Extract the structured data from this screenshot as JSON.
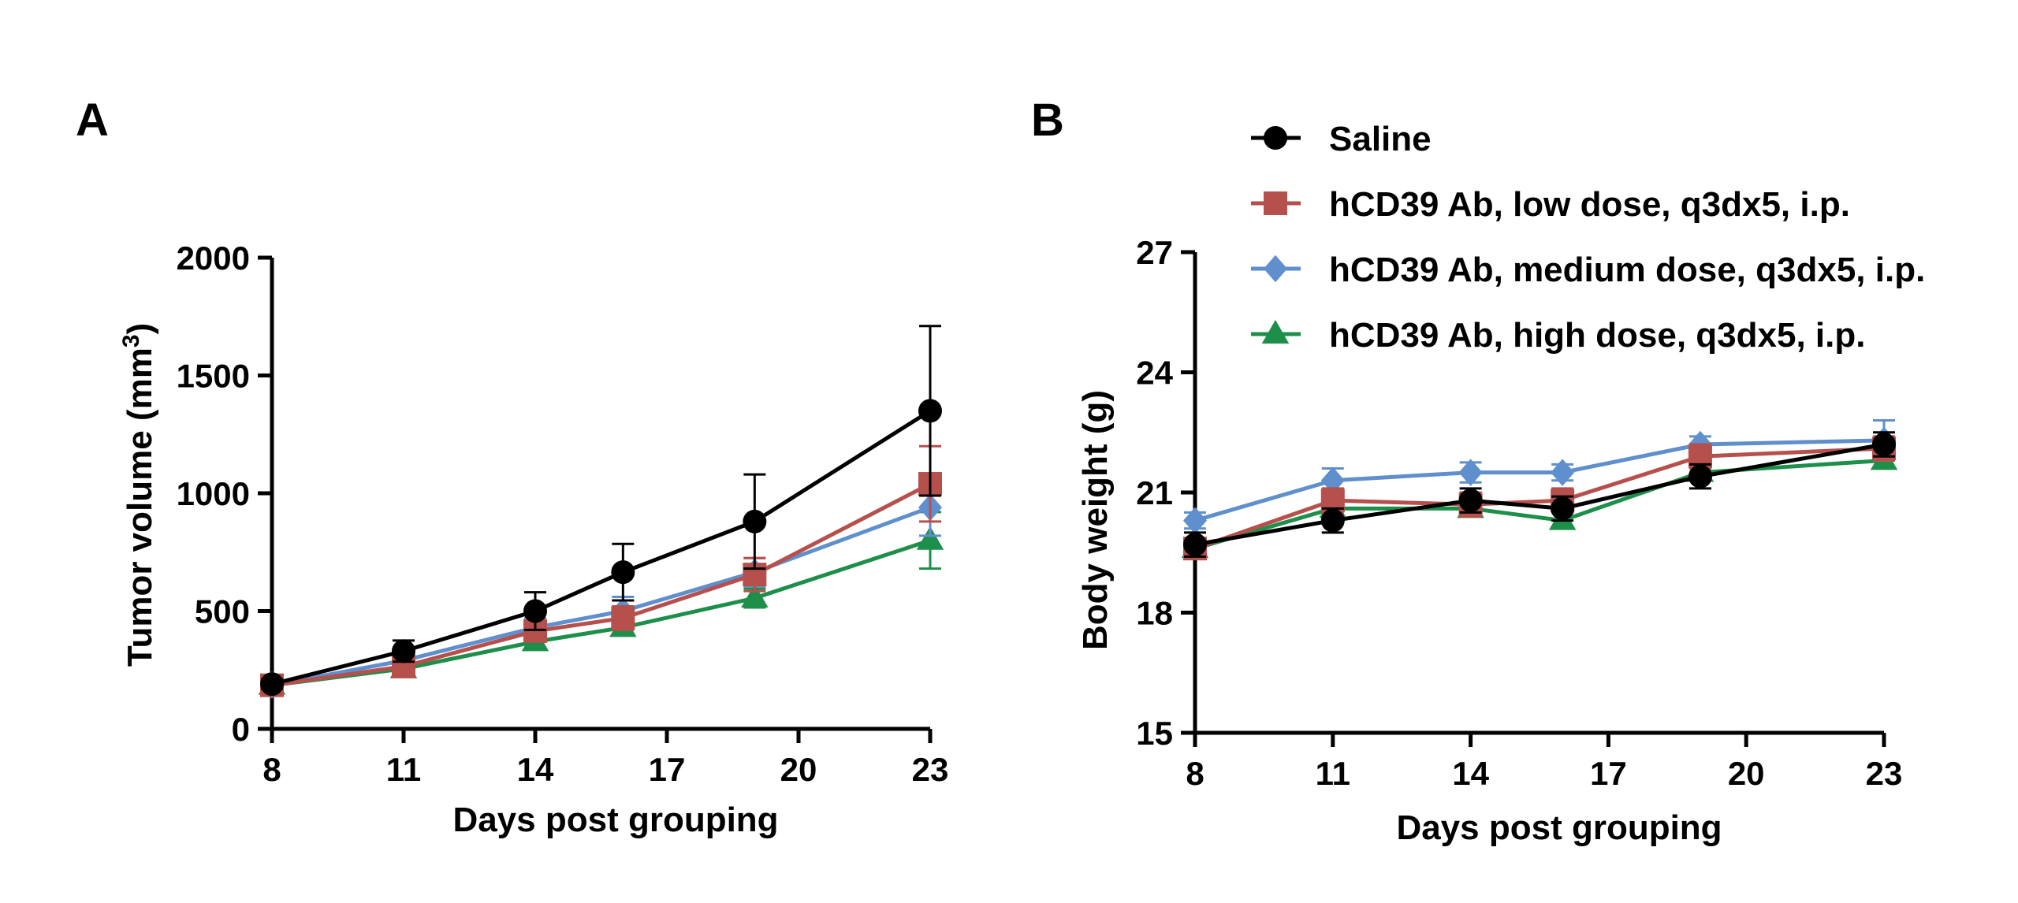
{
  "series_styles": [
    {
      "name": "Saline",
      "color": "#000000",
      "marker": "circle"
    },
    {
      "name": "hCD39 Ab, low dose, q3dx5, i.p.",
      "color": "#b5504d",
      "marker": "square"
    },
    {
      "name": "hCD39 Ab, medium dose, q3dx5, i.p.",
      "color": "#5f8fcc",
      "marker": "diamond"
    },
    {
      "name": "hCD39 Ab, high dose, q3dx5, i.p.",
      "color": "#1e8f4a",
      "marker": "triangle"
    }
  ],
  "chart_data": [
    {
      "panel": "A",
      "type": "line",
      "xlabel": "Days post grouping",
      "ylabel": "Tumor volume (mm",
      "ylabel_sup": "3",
      "ylabel_close": ")",
      "xlim": [
        8,
        23
      ],
      "ylim": [
        0,
        2000
      ],
      "xticks": [
        8,
        11,
        14,
        17,
        20,
        23
      ],
      "yticks": [
        0,
        500,
        1000,
        1500,
        2000
      ],
      "x": [
        8,
        11,
        14,
        16,
        19,
        23
      ],
      "series": [
        {
          "name": "Saline",
          "values": [
            190,
            330,
            500,
            665,
            880,
            1350
          ],
          "errors": [
            20,
            45,
            80,
            120,
            200,
            360
          ]
        },
        {
          "name": "hCD39 Ab, low dose, q3dx5, i.p.",
          "values": [
            185,
            265,
            415,
            470,
            655,
            1040
          ],
          "errors": [
            15,
            25,
            40,
            50,
            70,
            160
          ]
        },
        {
          "name": "hCD39 Ab, medium dose, q3dx5, i.p.",
          "values": [
            185,
            290,
            430,
            500,
            665,
            940
          ],
          "errors": [
            15,
            25,
            40,
            60,
            60,
            120
          ]
        },
        {
          "name": "hCD39 Ab, high dose, q3dx5, i.p.",
          "values": [
            185,
            255,
            370,
            430,
            555,
            800
          ],
          "errors": [
            15,
            20,
            25,
            30,
            40,
            120
          ]
        }
      ]
    },
    {
      "panel": "B",
      "type": "line",
      "xlabel": "Days post grouping",
      "ylabel": "Body weight (g)",
      "xlim": [
        8,
        23
      ],
      "ylim": [
        15,
        27
      ],
      "xticks": [
        8,
        11,
        14,
        17,
        20,
        23
      ],
      "yticks": [
        15,
        18,
        21,
        24,
        27
      ],
      "x": [
        8,
        11,
        14,
        16,
        19,
        23
      ],
      "legend_position": "top",
      "series": [
        {
          "name": "Saline",
          "values": [
            19.7,
            20.3,
            20.8,
            20.6,
            21.4,
            22.2
          ],
          "errors": [
            0.3,
            0.3,
            0.3,
            0.3,
            0.3,
            0.3
          ]
        },
        {
          "name": "hCD39 Ab, low dose, q3dx5, i.p.",
          "values": [
            19.6,
            20.8,
            20.7,
            20.8,
            21.9,
            22.1
          ],
          "errors": [
            0.2,
            0.3,
            0.3,
            0.3,
            0.3,
            0.3
          ]
        },
        {
          "name": "hCD39 Ab, medium dose, q3dx5, i.p.",
          "values": [
            20.3,
            21.3,
            21.5,
            21.5,
            22.2,
            22.3
          ],
          "errors": [
            0.2,
            0.3,
            0.25,
            0.2,
            0.2,
            0.5
          ]
        },
        {
          "name": "hCD39 Ab, high dose, q3dx5, i.p.",
          "values": [
            19.6,
            20.6,
            20.6,
            20.3,
            21.5,
            21.8
          ],
          "errors": [
            0.2,
            0.2,
            0.2,
            0.2,
            0.2,
            0.2
          ]
        }
      ]
    }
  ]
}
